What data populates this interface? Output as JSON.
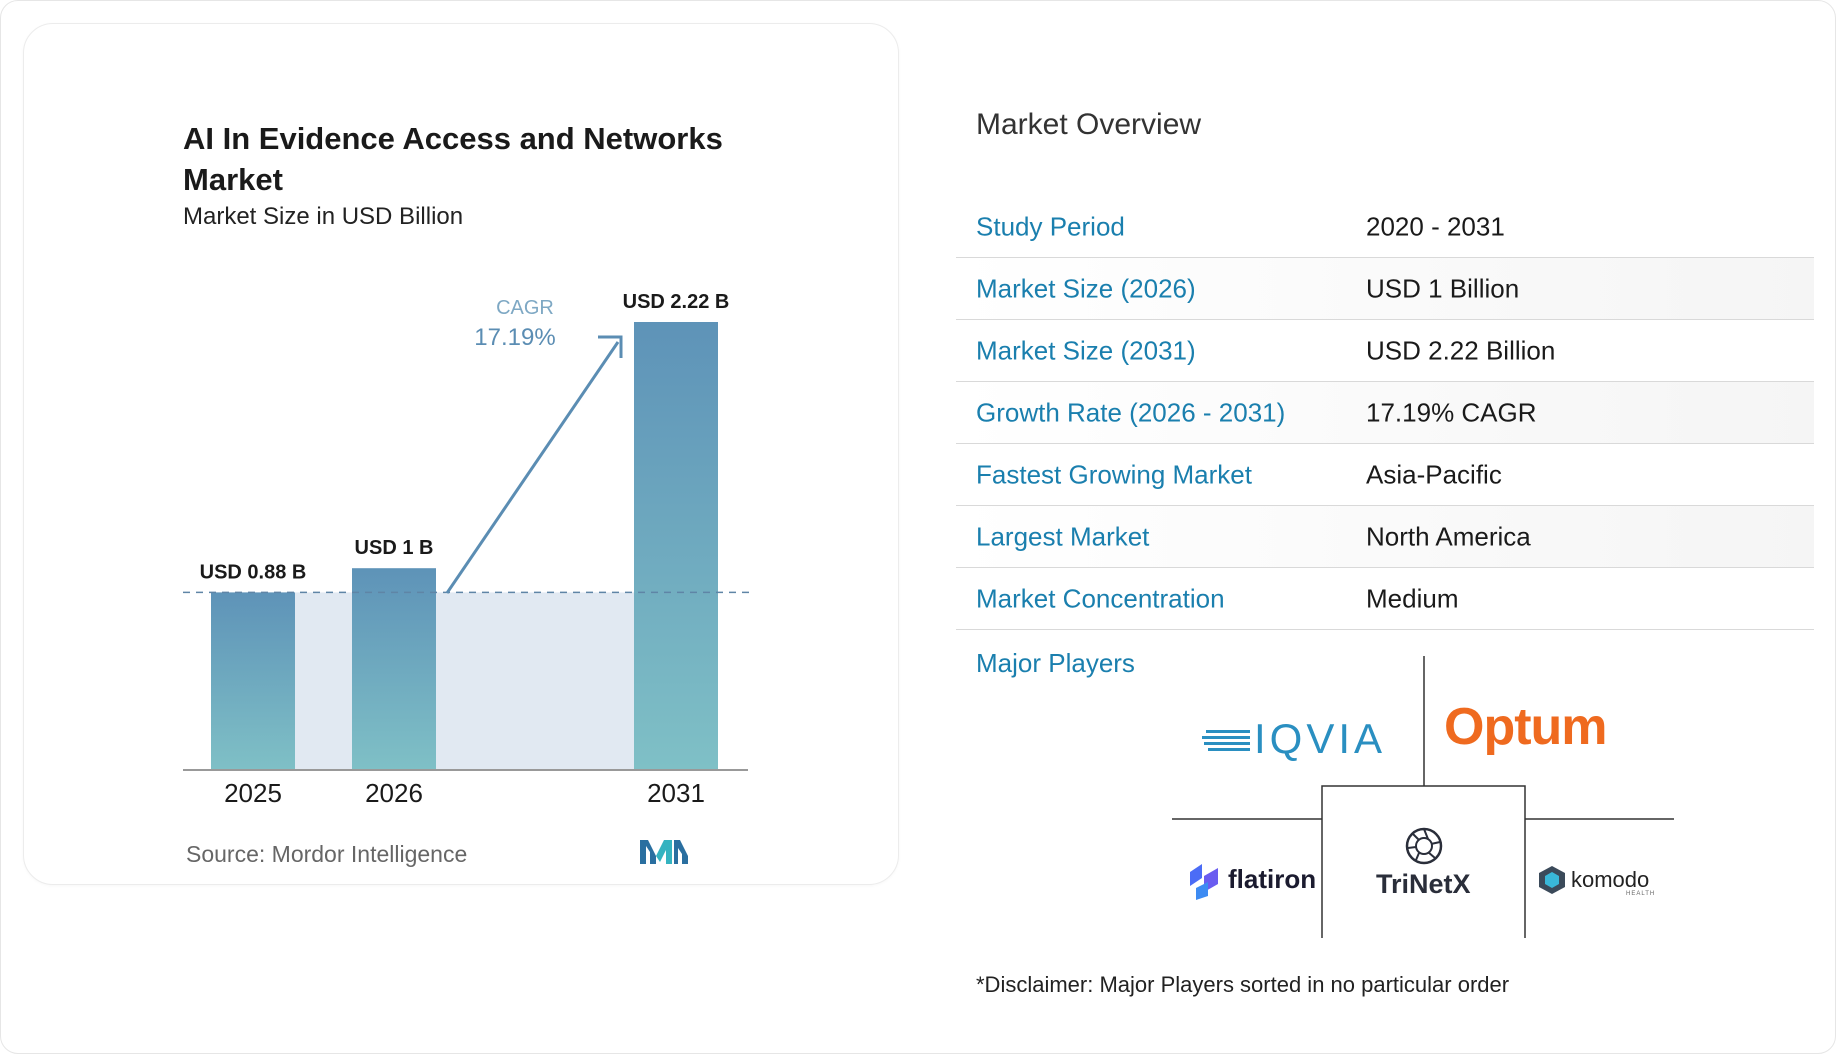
{
  "chart_data": {
    "type": "bar",
    "title": "AI In Evidence Access and Networks Market",
    "subtitle": "Market Size in USD Billion",
    "categories": [
      "2025",
      "2026",
      "2031"
    ],
    "values": [
      0.88,
      1.0,
      2.22
    ],
    "data_labels": [
      "USD 0.88 B",
      "USD 1 B",
      "USD 2.22 B"
    ],
    "cagr_label": "CAGR",
    "cagr_value": "17.19%",
    "source": "Source: Mordor Intelligence",
    "colors": {
      "bar_top": "#5e93b8",
      "bar_bottom": "#7fc0c6",
      "band": "#e1e9f2",
      "arrow": "#5b8db3",
      "dash": "#5f85a6"
    }
  },
  "overview": {
    "title": "Market Overview",
    "rows": [
      {
        "label": "Study Period",
        "value": "2020 - 2031"
      },
      {
        "label": "Market Size (2026)",
        "value": "USD 1 Billion"
      },
      {
        "label": "Market Size (2031)",
        "value": "USD 2.22 Billion"
      },
      {
        "label": "Growth Rate (2026 - 2031)",
        "value": "17.19% CAGR"
      },
      {
        "label": "Fastest Growing Market",
        "value": "Asia-Pacific"
      },
      {
        "label": "Largest Market",
        "value": "North America"
      },
      {
        "label": "Market Concentration",
        "value": "Medium"
      }
    ],
    "major_players_label": "Major Players",
    "players": [
      "IQVIA",
      "Optum",
      "flatiron",
      "TriNetX",
      "komodo"
    ],
    "komodo_sub": "HEALTH",
    "disclaimer": "*Disclaimer: Major Players sorted in no particular order"
  },
  "accent": "#1a7fae"
}
